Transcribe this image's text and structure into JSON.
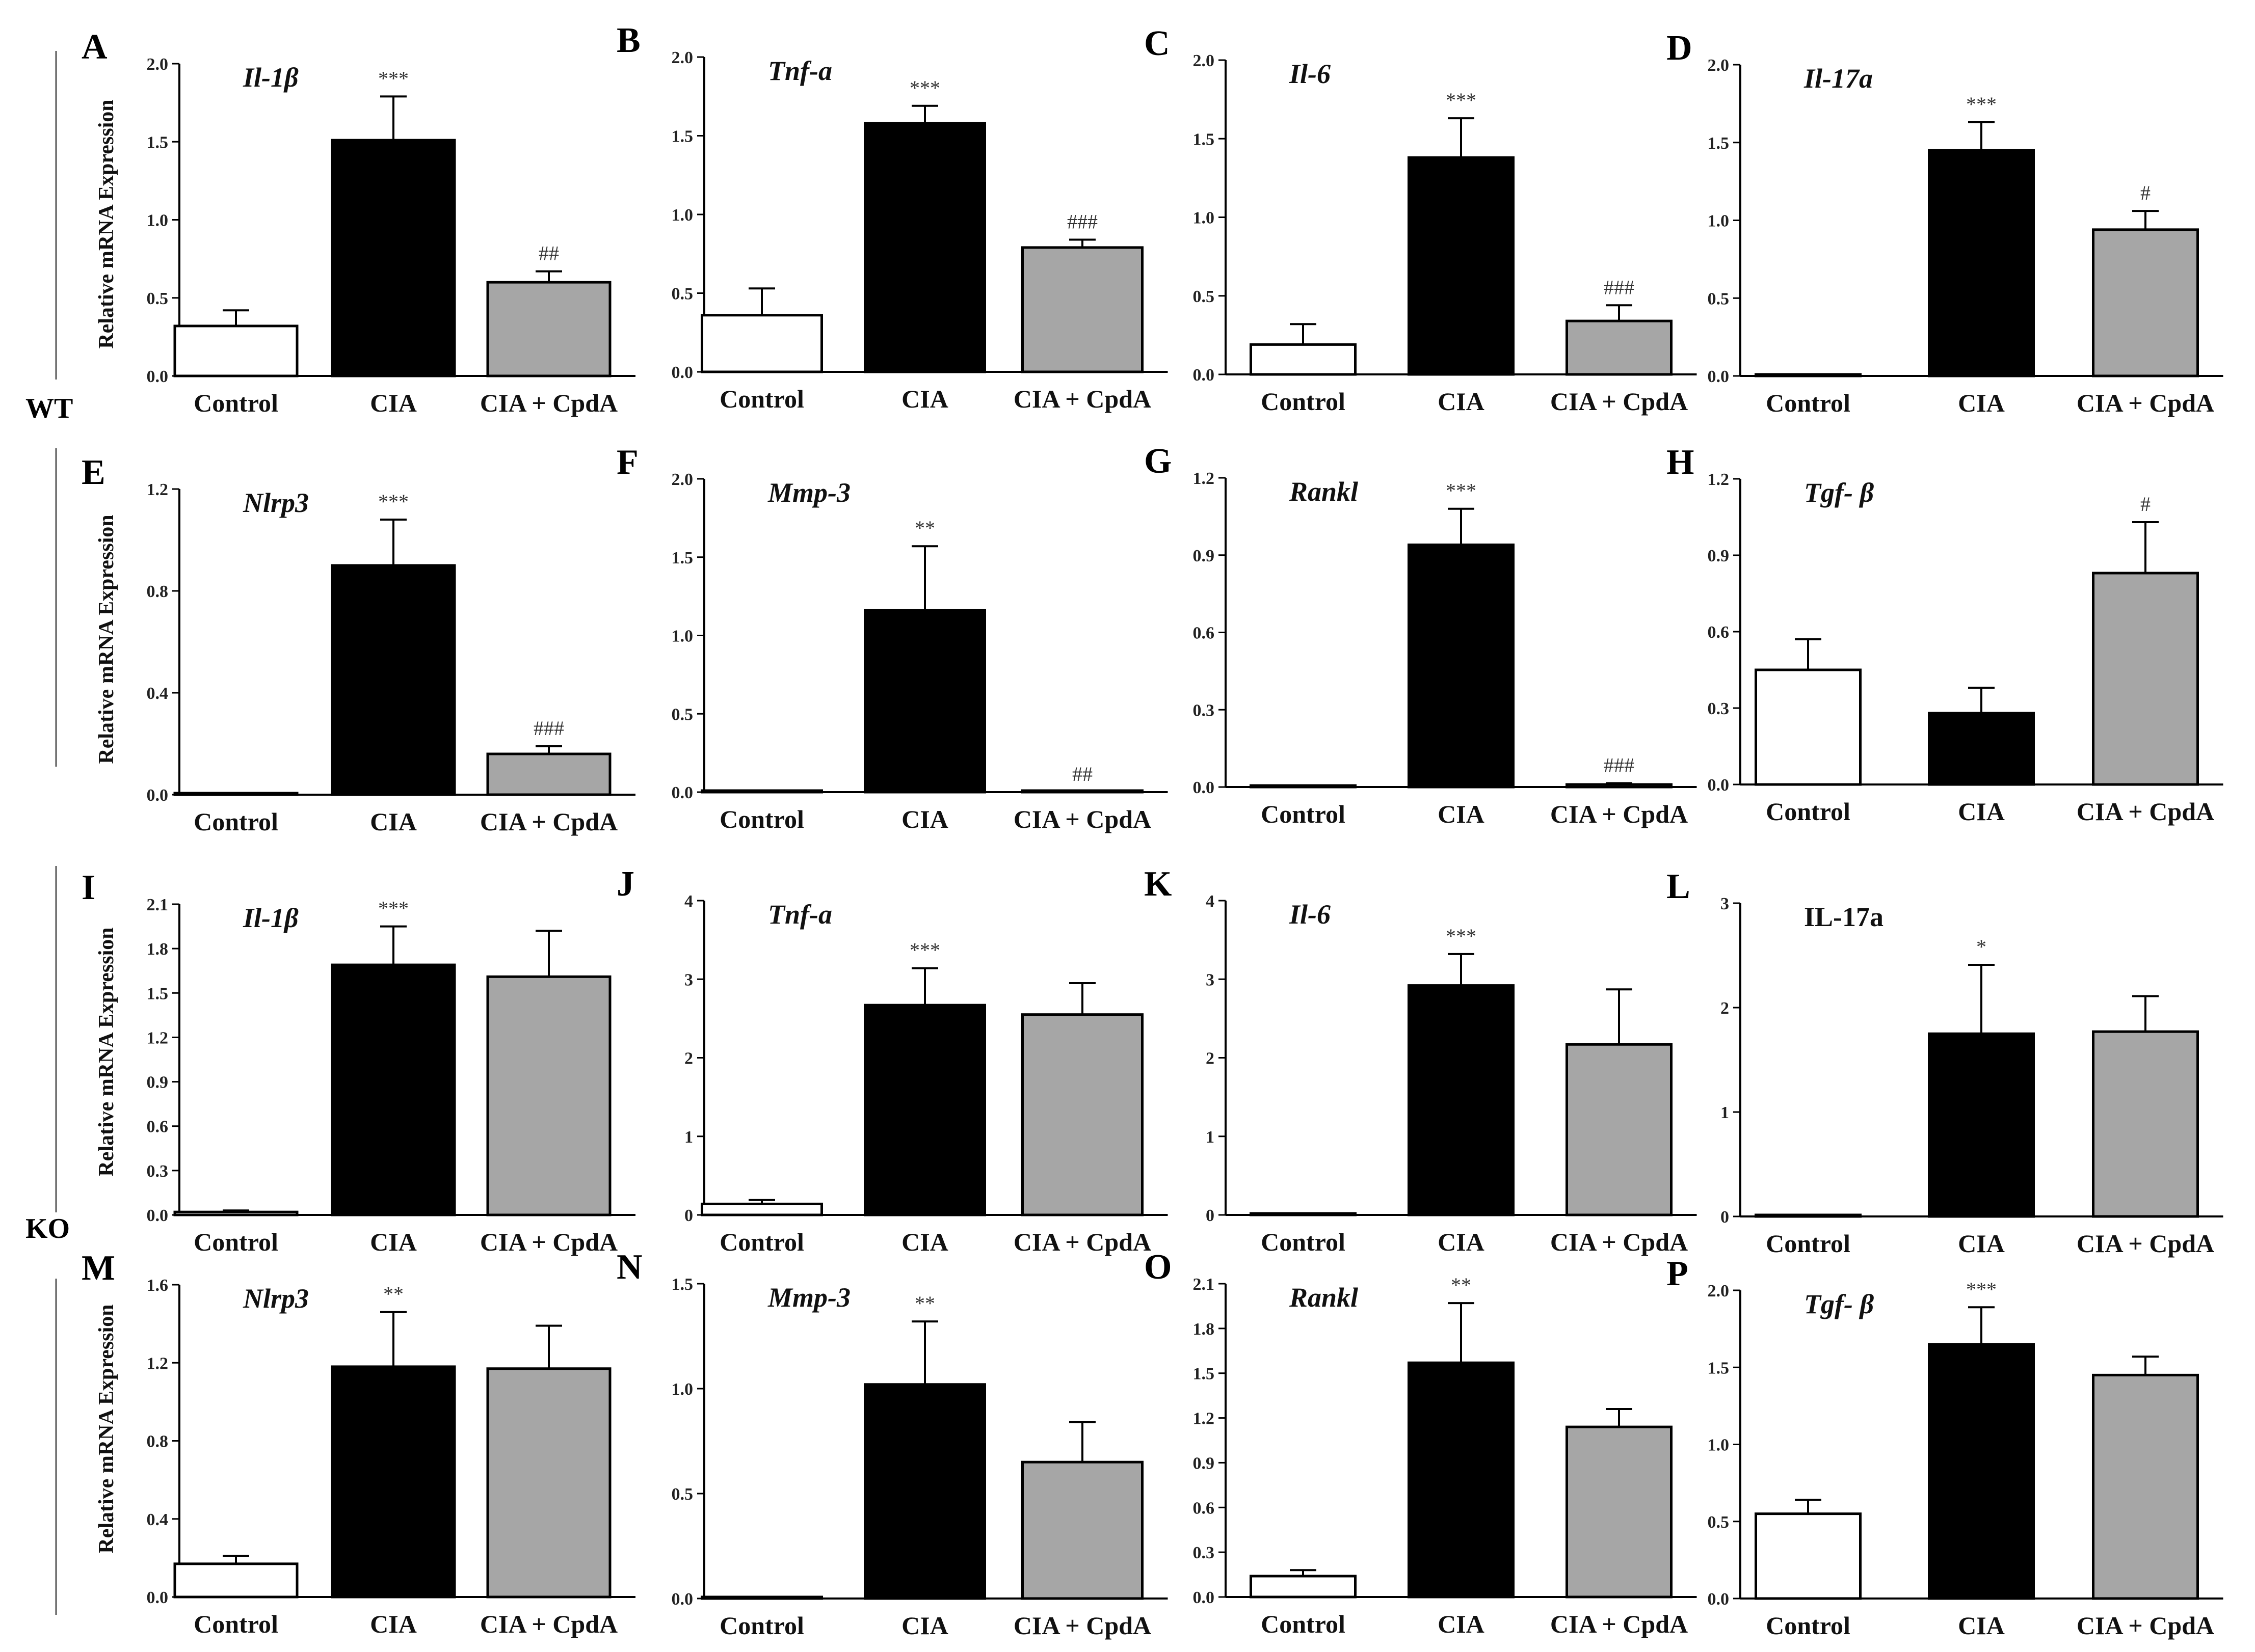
{
  "figure": {
    "y_axis_label": "Relative mRNA Expression",
    "groups": [
      {
        "name": "WT"
      },
      {
        "name": "KO"
      }
    ],
    "colors": {
      "Control": "#ffffff",
      "CIA": "#000000",
      "CIA + CpdA": "#a6a6a6"
    }
  },
  "chart_data": [
    {
      "panel": "A",
      "type": "bar",
      "title": "Il-1β",
      "title_italic": true,
      "group": "WT",
      "categories": [
        "Control",
        "CIA",
        "CIA + CpdA"
      ],
      "values": [
        0.32,
        1.51,
        0.6
      ],
      "errors": [
        0.1,
        0.28,
        0.07
      ],
      "annotations": [
        "",
        "***",
        "##"
      ],
      "ylim": [
        0,
        2.0
      ],
      "yticks": [
        0,
        0.5,
        1.0,
        1.5,
        2.0
      ],
      "ytick_labels": [
        "0.0",
        "0.5",
        "1.0",
        "1.5",
        "2.0"
      ]
    },
    {
      "panel": "B",
      "type": "bar",
      "title": "Tnf-a",
      "title_italic": true,
      "group": "WT",
      "categories": [
        "Control",
        "CIA",
        "CIA + CpdA"
      ],
      "values": [
        0.36,
        1.58,
        0.79
      ],
      "errors": [
        0.17,
        0.11,
        0.05
      ],
      "annotations": [
        "",
        "***",
        "###"
      ],
      "ylim": [
        0,
        2.0
      ],
      "yticks": [
        0,
        0.5,
        1.0,
        1.5,
        2.0
      ],
      "ytick_labels": [
        "0.0",
        "0.5",
        "1.0",
        "1.5",
        "2.0"
      ]
    },
    {
      "panel": "C",
      "type": "bar",
      "title": "Il-6",
      "title_italic": true,
      "group": "WT",
      "categories": [
        "Control",
        "CIA",
        "CIA + CpdA"
      ],
      "values": [
        0.19,
        1.38,
        0.34
      ],
      "errors": [
        0.13,
        0.25,
        0.1
      ],
      "annotations": [
        "",
        "***",
        "###"
      ],
      "ylim": [
        0,
        2.0
      ],
      "yticks": [
        0,
        0.5,
        1.0,
        1.5,
        2.0
      ],
      "ytick_labels": [
        "0.0",
        "0.5",
        "1.0",
        "1.5",
        "2.0"
      ]
    },
    {
      "panel": "D",
      "type": "bar",
      "title": "Il-17a",
      "title_italic": true,
      "group": "WT",
      "categories": [
        "Control",
        "CIA",
        "CIA + CpdA"
      ],
      "values": [
        0.01,
        1.45,
        0.94
      ],
      "errors": [
        0.0,
        0.18,
        0.12
      ],
      "annotations": [
        "",
        "***",
        "#"
      ],
      "ylim": [
        0,
        2.0
      ],
      "yticks": [
        0,
        0.5,
        1.0,
        1.5,
        2.0
      ],
      "ytick_labels": [
        "0.0",
        "0.5",
        "1.0",
        "1.5",
        "2.0"
      ]
    },
    {
      "panel": "E",
      "type": "bar",
      "title": "Nlrp3",
      "title_italic": true,
      "group": "WT",
      "categories": [
        "Control",
        "CIA",
        "CIA + CpdA"
      ],
      "values": [
        0.0,
        0.9,
        0.16
      ],
      "errors": [
        0.0,
        0.18,
        0.03
      ],
      "annotations": [
        "",
        "***",
        "###"
      ],
      "ylim": [
        0,
        1.2
      ],
      "yticks": [
        0,
        0.4,
        0.8,
        1.2
      ],
      "ytick_labels": [
        "0.0",
        "0.4",
        "0.8",
        "1.2"
      ]
    },
    {
      "panel": "F",
      "type": "bar",
      "title": "Mmp-3",
      "title_italic": true,
      "group": "WT",
      "categories": [
        "Control",
        "CIA",
        "CIA + CpdA"
      ],
      "values": [
        0.0,
        1.16,
        0.0
      ],
      "errors": [
        0.0,
        0.41,
        0.0
      ],
      "annotations": [
        "",
        "**",
        "##"
      ],
      "ylim": [
        0,
        2.0
      ],
      "yticks": [
        0,
        0.5,
        1.0,
        1.5,
        2.0
      ],
      "ytick_labels": [
        "0.0",
        "0.5",
        "1.0",
        "1.5",
        "2.0"
      ]
    },
    {
      "panel": "G",
      "type": "bar",
      "title": "Rankl",
      "title_italic": true,
      "group": "WT",
      "categories": [
        "Control",
        "CIA",
        "CIA + CpdA"
      ],
      "values": [
        0.005,
        0.94,
        0.01
      ],
      "errors": [
        0.0,
        0.14,
        0.005
      ],
      "annotations": [
        "",
        "***",
        "###"
      ],
      "ylim": [
        0,
        1.2
      ],
      "yticks": [
        0,
        0.3,
        0.6,
        0.9,
        1.2
      ],
      "ytick_labels": [
        "0.0",
        "0.3",
        "0.6",
        "0.9",
        "1.2"
      ]
    },
    {
      "panel": "H",
      "type": "bar",
      "title": "Tgf- β",
      "title_italic": true,
      "group": "WT",
      "categories": [
        "Control",
        "CIA",
        "CIA + CpdA"
      ],
      "values": [
        0.45,
        0.28,
        0.83
      ],
      "errors": [
        0.12,
        0.1,
        0.2
      ],
      "annotations": [
        "",
        "",
        "#"
      ],
      "ylim": [
        0,
        1.2
      ],
      "yticks": [
        0,
        0.3,
        0.6,
        0.9,
        1.2
      ],
      "ytick_labels": [
        "0.0",
        "0.3",
        "0.6",
        "0.9",
        "1.2"
      ]
    },
    {
      "panel": "I",
      "type": "bar",
      "title": "Il-1β",
      "title_italic": true,
      "group": "KO",
      "categories": [
        "Control",
        "CIA",
        "CIA + CpdA"
      ],
      "values": [
        0.02,
        1.69,
        1.61
      ],
      "errors": [
        0.01,
        0.26,
        0.31
      ],
      "annotations": [
        "",
        "***",
        ""
      ],
      "ylim": [
        0,
        2.1
      ],
      "yticks": [
        0,
        0.3,
        0.6,
        0.9,
        1.2,
        1.5,
        1.8,
        2.1
      ],
      "ytick_labels": [
        "0.0",
        "0.3",
        "0.6",
        "0.9",
        "1.2",
        "1.5",
        "1.8",
        "2.1"
      ]
    },
    {
      "panel": "J",
      "type": "bar",
      "title": "Tnf-a",
      "title_italic": true,
      "group": "KO",
      "categories": [
        "Control",
        "CIA",
        "CIA + CpdA"
      ],
      "values": [
        0.14,
        2.67,
        2.55
      ],
      "errors": [
        0.05,
        0.47,
        0.4
      ],
      "annotations": [
        "",
        "***",
        ""
      ],
      "ylim": [
        0,
        4
      ],
      "yticks": [
        0,
        1,
        2,
        3,
        4
      ],
      "ytick_labels": [
        "0",
        "1",
        "2",
        "3",
        "4"
      ]
    },
    {
      "panel": "K",
      "type": "bar",
      "title": "Il-6",
      "title_italic": true,
      "group": "KO",
      "categories": [
        "Control",
        "CIA",
        "CIA + CpdA"
      ],
      "values": [
        0.0,
        2.92,
        2.17
      ],
      "errors": [
        0.0,
        0.4,
        0.7
      ],
      "annotations": [
        "",
        "***",
        ""
      ],
      "ylim": [
        0,
        4
      ],
      "yticks": [
        0,
        1,
        2,
        3,
        4
      ],
      "ytick_labels": [
        "0",
        "1",
        "2",
        "3",
        "4"
      ]
    },
    {
      "panel": "L",
      "type": "bar",
      "title": "IL-17a",
      "title_italic": false,
      "group": "KO",
      "categories": [
        "Control",
        "CIA",
        "CIA + CpdA"
      ],
      "values": [
        0.0,
        1.75,
        1.77
      ],
      "errors": [
        0.0,
        0.66,
        0.34
      ],
      "annotations": [
        "",
        "*",
        ""
      ],
      "ylim": [
        0,
        3
      ],
      "yticks": [
        0,
        1,
        2,
        3
      ],
      "ytick_labels": [
        "0",
        "1",
        "2",
        "3"
      ]
    },
    {
      "panel": "M",
      "type": "bar",
      "title": "Nlrp3",
      "title_italic": true,
      "group": "KO",
      "categories": [
        "Control",
        "CIA",
        "CIA + CpdA"
      ],
      "values": [
        0.17,
        1.18,
        1.17
      ],
      "errors": [
        0.04,
        0.28,
        0.22
      ],
      "annotations": [
        "",
        "**",
        ""
      ],
      "ylim": [
        0,
        1.6
      ],
      "yticks": [
        0,
        0.4,
        0.8,
        1.2,
        1.6
      ],
      "ytick_labels": [
        "0.0",
        "0.4",
        "0.8",
        "1.2",
        "1.6"
      ]
    },
    {
      "panel": "N",
      "type": "bar",
      "title": "Mmp-3",
      "title_italic": true,
      "group": "KO",
      "categories": [
        "Control",
        "CIA",
        "CIA + CpdA"
      ],
      "values": [
        0.005,
        1.02,
        0.65
      ],
      "errors": [
        0.0,
        0.3,
        0.19
      ],
      "annotations": [
        "",
        "**",
        ""
      ],
      "ylim": [
        0,
        1.5
      ],
      "yticks": [
        0,
        0.5,
        1.0,
        1.5
      ],
      "ytick_labels": [
        "0.0",
        "0.5",
        "1.0",
        "1.5"
      ]
    },
    {
      "panel": "O",
      "type": "bar",
      "title": "Rankl",
      "title_italic": true,
      "group": "KO",
      "categories": [
        "Control",
        "CIA",
        "CIA + CpdA"
      ],
      "values": [
        0.14,
        1.57,
        1.14
      ],
      "errors": [
        0.04,
        0.4,
        0.12
      ],
      "annotations": [
        "",
        "**",
        ""
      ],
      "ylim": [
        0,
        2.1
      ],
      "yticks": [
        0,
        0.3,
        0.6,
        0.9,
        1.2,
        1.5,
        1.8,
        2.1
      ],
      "ytick_labels": [
        "0.0",
        "0.3",
        "0.6",
        "0.9",
        "1.2",
        "1.5",
        "1.8",
        "2.1"
      ]
    },
    {
      "panel": "P",
      "type": "bar",
      "title": "Tgf- β",
      "title_italic": true,
      "group": "KO",
      "categories": [
        "Control",
        "CIA",
        "CIA + CpdA"
      ],
      "values": [
        0.55,
        1.65,
        1.45
      ],
      "errors": [
        0.09,
        0.24,
        0.12
      ],
      "annotations": [
        "",
        "***",
        ""
      ],
      "ylim": [
        0,
        2.0
      ],
      "yticks": [
        0,
        0.5,
        1.0,
        1.5,
        2.0
      ],
      "ytick_labels": [
        "0.0",
        "0.5",
        "1.0",
        "1.5",
        "2.0"
      ]
    }
  ]
}
